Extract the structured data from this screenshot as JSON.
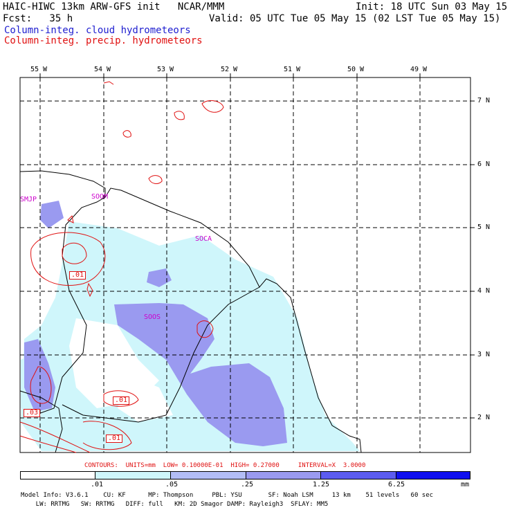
{
  "header": {
    "line1_left": "HAIC-HIWC 13km ARW-GFS init   NCAR/MMM",
    "line1_right": "Init: 18 UTC Sun 03 May 15",
    "line2_left": "Fcst:   35 h",
    "line2_right": "Valid: 05 UTC Tue 05 May 15 (02 LST Tue 05 May 15)",
    "legend_cloud": "Column-integ. cloud hydrometeors",
    "legend_precip": "Column-integ. precip. hydrometeors"
  },
  "axes": {
    "lon_labels": [
      "55 W",
      "54 W",
      "53 W",
      "52 W",
      "51 W",
      "50 W",
      "49 W"
    ],
    "lat_labels": [
      "7 N",
      "6 N",
      "5 N",
      "4 N",
      "3 N",
      "2 N"
    ]
  },
  "stations": [
    "SMJP",
    "SOOM",
    "SOCA",
    "SOOS"
  ],
  "contour_labels": [
    ".01",
    ".01",
    ".03",
    ".01"
  ],
  "contours_info": "CONTOURS:  UNITS=mm  LOW= 0.10000E-01  HIGH= 0.27000     INTERVAL=X  3.0000",
  "colorbar": {
    "ticks": [
      ".01",
      ".05",
      ".25",
      "1.25",
      "6.25"
    ],
    "units": "mm",
    "colors": [
      "#ffffff",
      "#cff6fb",
      "#b3bdf6",
      "#9a9af0",
      "#5c5cf0",
      "#1010f0"
    ]
  },
  "footer": {
    "line1": "Model Info: V3.6.1    CU: KF      MP: Thompson     PBL: YSU       SF: Noah LSM     13 km    51 levels   60 sec",
    "line2": "    LW: RRTMG   SW: RRTMG   DIFF: full   KM: 2D Smagor DAMP: Rayleigh3  SFLAY: MM5"
  }
}
